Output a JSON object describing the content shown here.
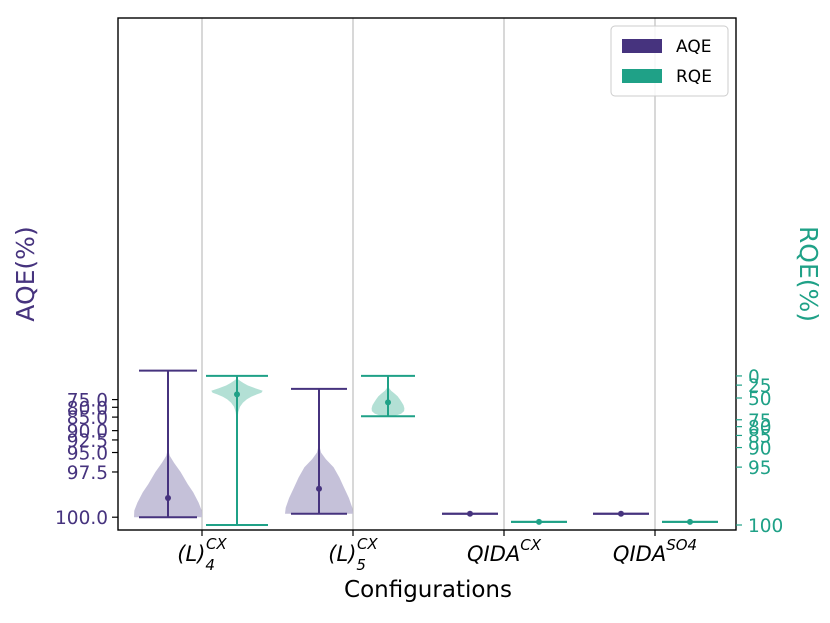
{
  "chart_data": {
    "type": "violin",
    "xlabel": "Configurations",
    "categories": [
      {
        "base": "(L)",
        "sup": "CX",
        "sub": "4"
      },
      {
        "base": "(L)",
        "sup": "CX",
        "sub": "5"
      },
      {
        "base": "QIDA",
        "sup": "CX",
        "sub": ""
      },
      {
        "base": "QIDA",
        "sup": "SO4",
        "sub": ""
      }
    ],
    "left_axis": {
      "label": "AQE(%)",
      "scale": "log-distance-from-100",
      "ticks": [
        75.0,
        80.0,
        85.0,
        90.0,
        92.5,
        95.0,
        97.5,
        100.0
      ],
      "tick_labels": [
        "75.0",
        "80.0",
        "85.0",
        "90.0",
        "92.5",
        "95.0",
        "97.5",
        "100.0"
      ],
      "color": "#46337e"
    },
    "right_axis": {
      "label": "RQE(%)",
      "scale": "log-distance-from-100",
      "ticks": [
        0,
        25,
        50,
        75,
        80,
        85,
        90,
        95,
        100
      ],
      "tick_labels": [
        "0",
        "25",
        "50",
        "75",
        "80",
        "85",
        "90",
        "95",
        "100"
      ],
      "color": "#1fa187"
    },
    "grid": "vertical",
    "legend": {
      "position": "top-right",
      "entries": [
        "AQE",
        "RQE"
      ]
    },
    "series": [
      {
        "name": "AQE",
        "color": "#46337e",
        "fill": "#c5c1d9",
        "axis": "left",
        "violins": [
          {
            "min": 43,
            "max": 100,
            "mean": 99.3,
            "shape": [
              [
                100,
                1.0
              ],
              [
                99.8,
                0.99
              ],
              [
                99.5,
                0.9
              ],
              [
                99,
                0.74
              ],
              [
                98.5,
                0.58
              ],
              [
                97.5,
                0.37
              ],
              [
                96.5,
                0.18
              ],
              [
                95.5,
                0.05
              ],
              [
                94.5,
                0.01
              ],
              [
                92,
                0.005
              ],
              [
                85,
                0.003
              ],
              [
                75,
                0.002
              ],
              [
                43,
                0
              ]
            ]
          },
          {
            "min": 66,
            "max": 99.9,
            "mean": 98.8,
            "shape": [
              [
                99.9,
                1.0
              ],
              [
                99.7,
                0.98
              ],
              [
                99.3,
                0.88
              ],
              [
                98.7,
                0.73
              ],
              [
                98,
                0.6
              ],
              [
                97,
                0.43
              ],
              [
                96,
                0.2
              ],
              [
                95,
                0.06
              ],
              [
                94,
                0.02
              ],
              [
                92,
                0.006
              ],
              [
                85,
                0.003
              ],
              [
                66,
                0
              ]
            ]
          },
          {
            "min": 99.9,
            "max": 99.9,
            "mean": 99.9,
            "shape": []
          },
          {
            "min": 99.9,
            "max": 99.9,
            "mean": 99.9,
            "shape": []
          }
        ]
      },
      {
        "name": "RQE",
        "color": "#1fa187",
        "fill": "#b3e0d5",
        "axis": "right",
        "violins": [
          {
            "min": 0,
            "max": 100,
            "mean": 44,
            "shape": [
              [
                5,
                0.0
              ],
              [
                10,
                0.03
              ],
              [
                14,
                0.09
              ],
              [
                20,
                0.2
              ],
              [
                26,
                0.33
              ],
              [
                32,
                0.55
              ],
              [
                37,
                0.78
              ],
              [
                41,
                0.74
              ],
              [
                44,
                0.6
              ],
              [
                48,
                0.43
              ],
              [
                52,
                0.3
              ],
              [
                57,
                0.18
              ],
              [
                62,
                0.09
              ],
              [
                68,
                0.04
              ],
              [
                76,
                0.01
              ],
              [
                85,
                0.005
              ],
              [
                100,
                0.002
              ]
            ]
          },
          {
            "min": 0,
            "max": 72,
            "mean": 56.5,
            "shape": [
              [
                0,
                0.002
              ],
              [
                15,
                0.004
              ],
              [
                25,
                0.01
              ],
              [
                32,
                0.04
              ],
              [
                37,
                0.1
              ],
              [
                42,
                0.2
              ],
              [
                47,
                0.31
              ],
              [
                52,
                0.38
              ],
              [
                56,
                0.44
              ],
              [
                60,
                0.5
              ],
              [
                64,
                0.53
              ],
              [
                67,
                0.52
              ],
              [
                69.5,
                0.43
              ],
              [
                71,
                0.3
              ],
              [
                72,
                0.15
              ]
            ]
          },
          {
            "min": 99.9,
            "max": 99.9,
            "mean": 99.9,
            "shape": []
          },
          {
            "min": 99.9,
            "max": 99.9,
            "mean": 99.9,
            "shape": []
          }
        ]
      }
    ]
  }
}
